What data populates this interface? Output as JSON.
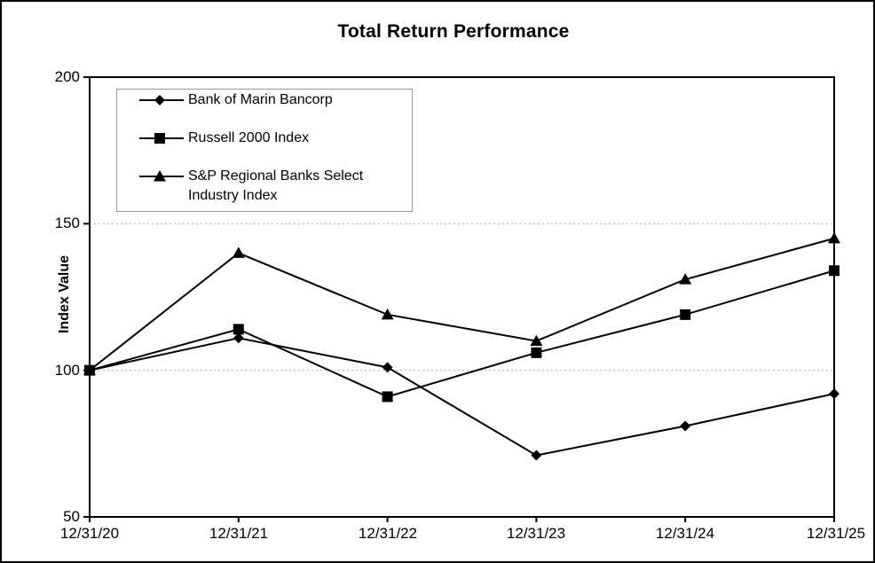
{
  "chart_data": {
    "type": "line",
    "title": "Total Return Performance",
    "ylabel": "Index Value",
    "x_categories": [
      "12/31/20",
      "12/31/21",
      "12/31/22",
      "12/31/23",
      "12/31/24",
      "12/31/25"
    ],
    "ylim": [
      50,
      200
    ],
    "yticks": [
      50,
      100,
      150,
      200
    ],
    "gridlines_y": [
      100,
      150
    ],
    "grid": "horizontal dashed gridlines at 100 and 150 only",
    "legend_position": "top-left inside plot area",
    "line_color": "#000000",
    "gridline_color": "#b0b0b0",
    "series": [
      {
        "name": "Bank of Marin Bancorp",
        "marker": "diamond",
        "color": "#000000",
        "values": [
          100,
          111,
          101,
          71,
          81,
          92
        ]
      },
      {
        "name": "Russell 2000 Index",
        "marker": "square",
        "color": "#000000",
        "values": [
          100,
          114,
          91,
          106,
          119,
          134
        ]
      },
      {
        "name": "S&P Regional Banks Select Industry Index",
        "marker": "triangle",
        "color": "#000000",
        "values": [
          100,
          140,
          119,
          110,
          131,
          145
        ]
      }
    ]
  }
}
